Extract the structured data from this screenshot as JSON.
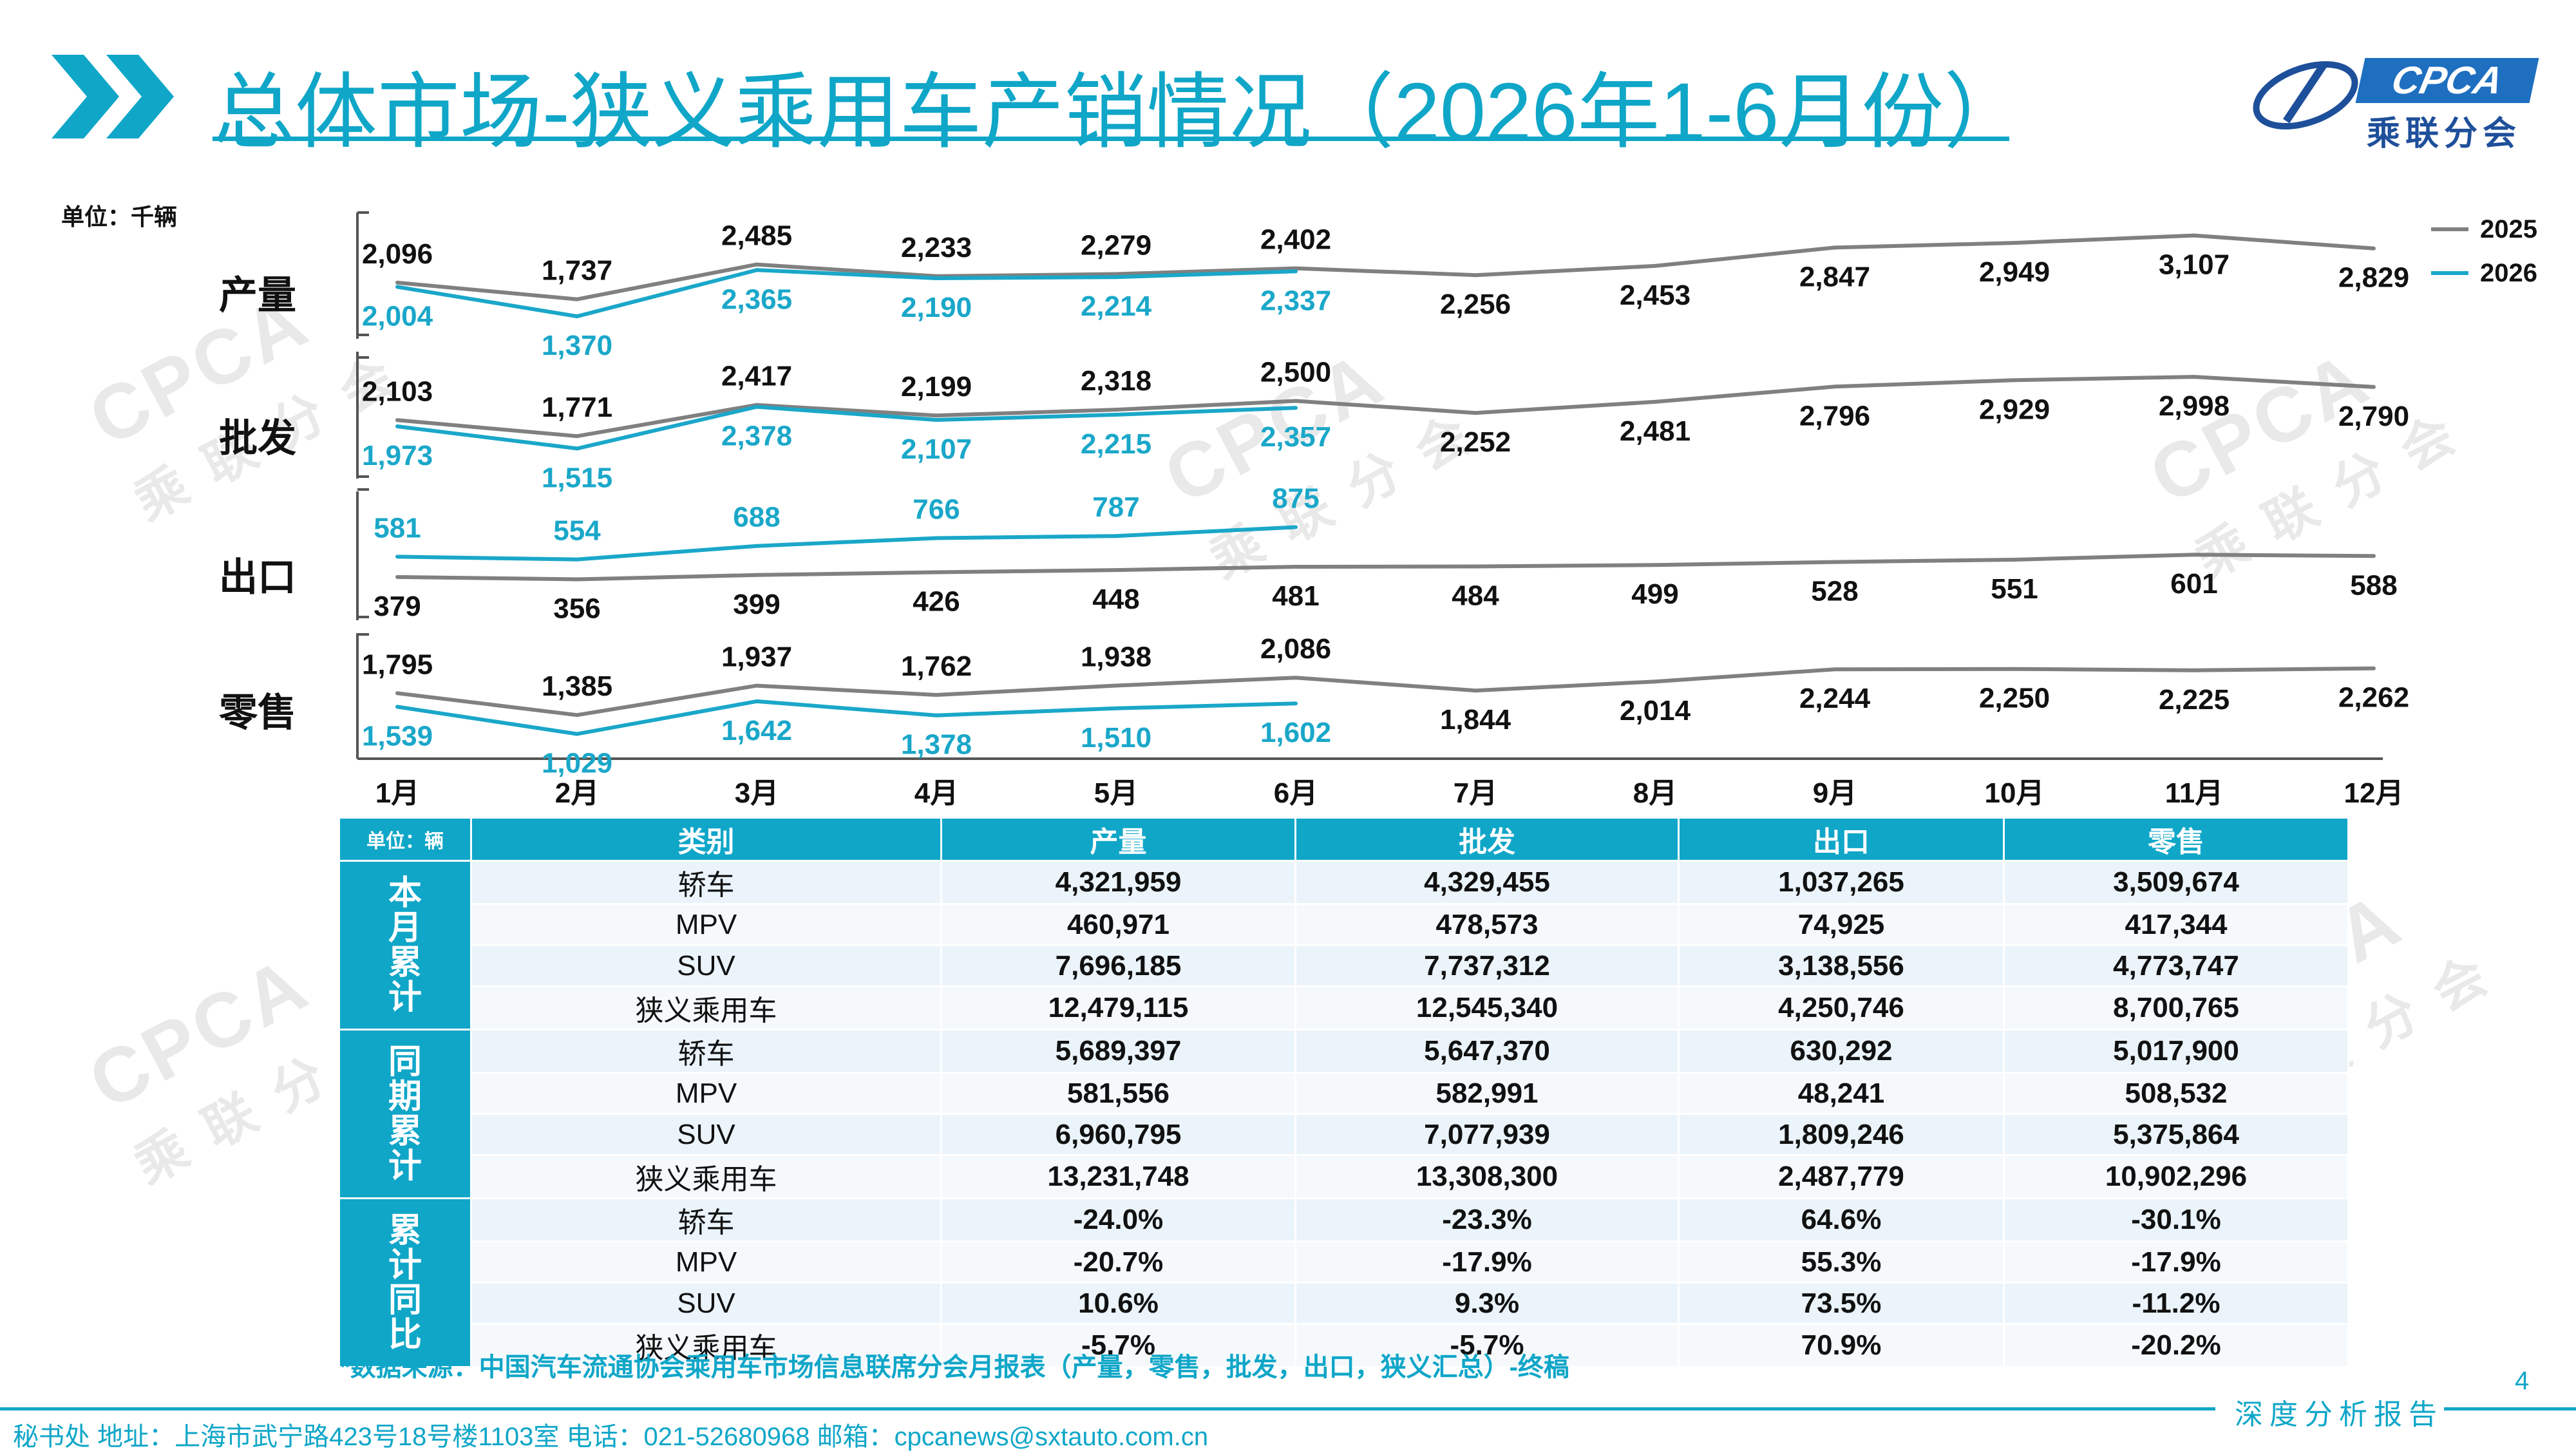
{
  "header": {
    "title": "总体市场-狭义乘用车产销情况（2026年1-6月份）",
    "logo_text": "CPCA",
    "logo_cn": "乘联分会",
    "accent_color": "#0fa6c8"
  },
  "watermark": {
    "text": "CPCA",
    "sub": "乘联分会"
  },
  "chart_data": {
    "type": "line",
    "unit": "单位：千辆",
    "categories": [
      "1月",
      "2月",
      "3月",
      "4月",
      "5月",
      "6月",
      "7月",
      "8月",
      "9月",
      "10月",
      "11月",
      "12月"
    ],
    "colors": {
      "2025": "#808080",
      "2026": "#1aa7c9"
    },
    "legend": [
      {
        "name": "2025",
        "color": "#808080"
      },
      {
        "name": "2026",
        "color": "#1aa7c9"
      }
    ],
    "legend_position": "top-right",
    "panels": [
      {
        "label": "产量",
        "series": [
          {
            "name": "2025",
            "values": [
              2096,
              1737,
              2485,
              2233,
              2279,
              2402,
              2256,
              2453,
              2847,
              2949,
              3107,
              2829
            ]
          },
          {
            "name": "2026",
            "values": [
              2004,
              1370,
              2365,
              2190,
              2214,
              2337
            ]
          }
        ]
      },
      {
        "label": "批发",
        "series": [
          {
            "name": "2025",
            "values": [
              2103,
              1771,
              2417,
              2199,
              2318,
              2500,
              2252,
              2481,
              2796,
              2929,
              2998,
              2790
            ]
          },
          {
            "name": "2026",
            "values": [
              1973,
              1515,
              2378,
              2107,
              2215,
              2357
            ]
          }
        ]
      },
      {
        "label": "出口",
        "series": [
          {
            "name": "2025",
            "values": [
              379,
              356,
              399,
              426,
              448,
              481,
              484,
              499,
              528,
              551,
              601,
              588
            ]
          },
          {
            "name": "2026",
            "values": [
              581,
              554,
              688,
              766,
              787,
              875
            ]
          }
        ]
      },
      {
        "label": "零售",
        "series": [
          {
            "name": "2025",
            "values": [
              1795,
              1385,
              1937,
              1762,
              1938,
              2086,
              1844,
              2014,
              2244,
              2250,
              2225,
              2262
            ]
          },
          {
            "name": "2026",
            "values": [
              1539,
              1029,
              1642,
              1378,
              1510,
              1602
            ]
          }
        ]
      }
    ]
  },
  "table": {
    "unit": "单位：辆",
    "columns": [
      "类别",
      "产量",
      "批发",
      "出口",
      "零售"
    ],
    "groups": [
      {
        "label": "本月累计",
        "rows": [
          [
            "轿车",
            "4,321,959",
            "4,329,455",
            "1,037,265",
            "3,509,674"
          ],
          [
            "MPV",
            "460,971",
            "478,573",
            "74,925",
            "417,344"
          ],
          [
            "SUV",
            "7,696,185",
            "7,737,312",
            "3,138,556",
            "4,773,747"
          ],
          [
            "狭义乘用车",
            "12,479,115",
            "12,545,340",
            "4,250,746",
            "8,700,765"
          ]
        ]
      },
      {
        "label": "同期累计",
        "rows": [
          [
            "轿车",
            "5,689,397",
            "5,647,370",
            "630,292",
            "5,017,900"
          ],
          [
            "MPV",
            "581,556",
            "582,991",
            "48,241",
            "508,532"
          ],
          [
            "SUV",
            "6,960,795",
            "7,077,939",
            "1,809,246",
            "5,375,864"
          ],
          [
            "狭义乘用车",
            "13,231,748",
            "13,308,300",
            "2,487,779",
            "10,902,296"
          ]
        ]
      },
      {
        "label": "累计同比",
        "rows": [
          [
            "轿车",
            "-24.0%",
            "-23.3%",
            "64.6%",
            "-30.1%"
          ],
          [
            "MPV",
            "-20.7%",
            "-17.9%",
            "55.3%",
            "-17.9%"
          ],
          [
            "SUV",
            "10.6%",
            "9.3%",
            "73.5%",
            "-11.2%"
          ],
          [
            "狭义乘用车",
            "-5.7%",
            "-5.7%",
            "70.9%",
            "-20.2%"
          ]
        ]
      }
    ]
  },
  "source": "*数据来源：中国汽车流通协会乘用车市场信息联席分会月报表（产量，零售，批发，出口，狭义汇总）-终稿",
  "page_number": "4",
  "footer": {
    "address": "秘书处   地址：上海市武宁路423号18号楼1103室   电话：021-52680968    邮箱：cpcanews@sxtauto.com.cn",
    "tag": "深度分析报告"
  }
}
